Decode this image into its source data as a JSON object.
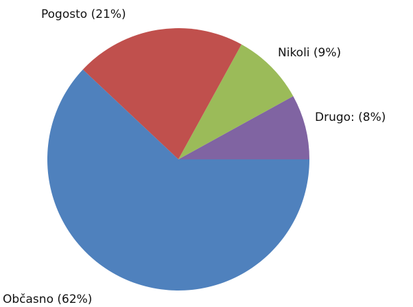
{
  "chart_data": {
    "type": "pie",
    "slices": [
      {
        "label": "Drugo: (8%)",
        "value": 8,
        "color": "#8064a2"
      },
      {
        "label": "Nikoli (9%)",
        "value": 9,
        "color": "#9bbb59"
      },
      {
        "label": "Pogosto (21%)",
        "value": 21,
        "color": "#c0504d"
      },
      {
        "label": "Občasno (62%)",
        "value": 62,
        "color": "#4f81bd"
      }
    ],
    "legend": "none"
  }
}
